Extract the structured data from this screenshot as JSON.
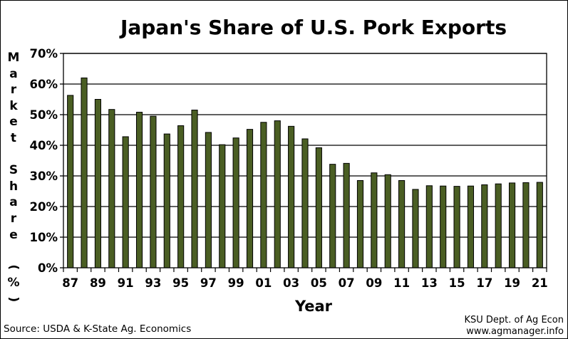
{
  "chart_data": {
    "type": "bar",
    "title": "Japan's Share of U.S. Pork Exports",
    "ylabel_chars": [
      "M",
      "a",
      "r",
      "k",
      "e",
      "t",
      "",
      "S",
      "h",
      "a",
      "r",
      "e",
      "",
      "(",
      "%",
      ")"
    ],
    "xlabel": "Year",
    "ylim": [
      0,
      70
    ],
    "yticks": [
      "0%",
      "10%",
      "20%",
      "30%",
      "40%",
      "50%",
      "60%",
      "70%"
    ],
    "ytick_values": [
      0,
      10,
      20,
      30,
      40,
      50,
      60,
      70
    ],
    "categories": [
      "87",
      "88",
      "89",
      "90",
      "91",
      "92",
      "93",
      "94",
      "95",
      "96",
      "97",
      "98",
      "99",
      "00",
      "01",
      "02",
      "03",
      "04",
      "05",
      "06",
      "07",
      "08",
      "09",
      "10",
      "11",
      "12",
      "13",
      "14",
      "15",
      "16",
      "17",
      "18",
      "19",
      "20",
      "21"
    ],
    "xtick_labels": [
      "87",
      "",
      "89",
      "",
      "91",
      "",
      "93",
      "",
      "95",
      "",
      "97",
      "",
      "99",
      "",
      "01",
      "",
      "03",
      "",
      "05",
      "",
      "07",
      "",
      "09",
      "",
      "11",
      "",
      "13",
      "",
      "15",
      "",
      "17",
      "",
      "19",
      "",
      "21"
    ],
    "values": [
      56.3,
      62.0,
      55.0,
      51.7,
      42.8,
      50.8,
      49.5,
      43.7,
      46.4,
      51.5,
      44.2,
      40.2,
      42.4,
      45.2,
      47.5,
      48.0,
      46.2,
      42.1,
      39.2,
      33.8,
      34.1,
      28.5,
      31.0,
      30.4,
      28.5,
      25.6,
      26.8,
      26.7,
      26.6,
      26.7,
      27.1,
      27.4,
      27.7,
      27.8,
      27.9
    ],
    "grid": true,
    "legend": "none",
    "bar_color": "#4a5e23",
    "bar_edge_color": "#000000"
  },
  "footer": {
    "source": "Source:  USDA & K-State Ag. Economics",
    "credit_line1": "KSU Dept. of Ag Econ",
    "credit_line2": "www.agmanager.info"
  }
}
